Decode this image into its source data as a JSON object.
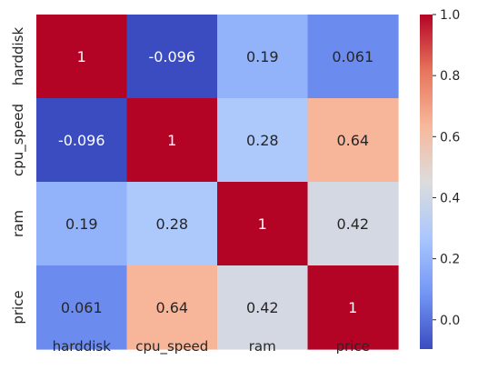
{
  "chart_data": {
    "type": "heatmap",
    "title": "",
    "xlabel": "",
    "ylabel": "",
    "x_categories": [
      "harddisk",
      "cpu_speed",
      "ram",
      "price"
    ],
    "y_categories": [
      "harddisk",
      "cpu_speed",
      "ram",
      "price"
    ],
    "values": [
      [
        1,
        -0.096,
        0.19,
        0.061
      ],
      [
        -0.096,
        1,
        0.28,
        0.64
      ],
      [
        0.19,
        0.28,
        1,
        0.42
      ],
      [
        0.061,
        0.64,
        0.42,
        1
      ]
    ],
    "annotations": [
      [
        "1",
        "-0.096",
        "0.19",
        "0.061"
      ],
      [
        "-0.096",
        "1",
        "0.28",
        "0.64"
      ],
      [
        "0.19",
        "0.28",
        "1",
        "0.42"
      ],
      [
        "0.061",
        "0.64",
        "0.42",
        "1"
      ]
    ],
    "colormap": "coolwarm",
    "colormap_stops": [
      "#3b4cc0",
      "#7396f5",
      "#aac7fd",
      "#dddcdc",
      "#f7b89c",
      "#e7745b",
      "#b40426"
    ],
    "colorbar": {
      "vmin": -0.096,
      "vmax": 1.0,
      "ticks": [
        -0.0,
        0.2,
        0.4,
        0.6,
        0.8,
        1.0
      ],
      "tick_labels": [
        "0.0",
        "0.2",
        "0.4",
        "0.6",
        "0.8",
        "1.0"
      ],
      "placement": "right"
    },
    "grid": false
  }
}
